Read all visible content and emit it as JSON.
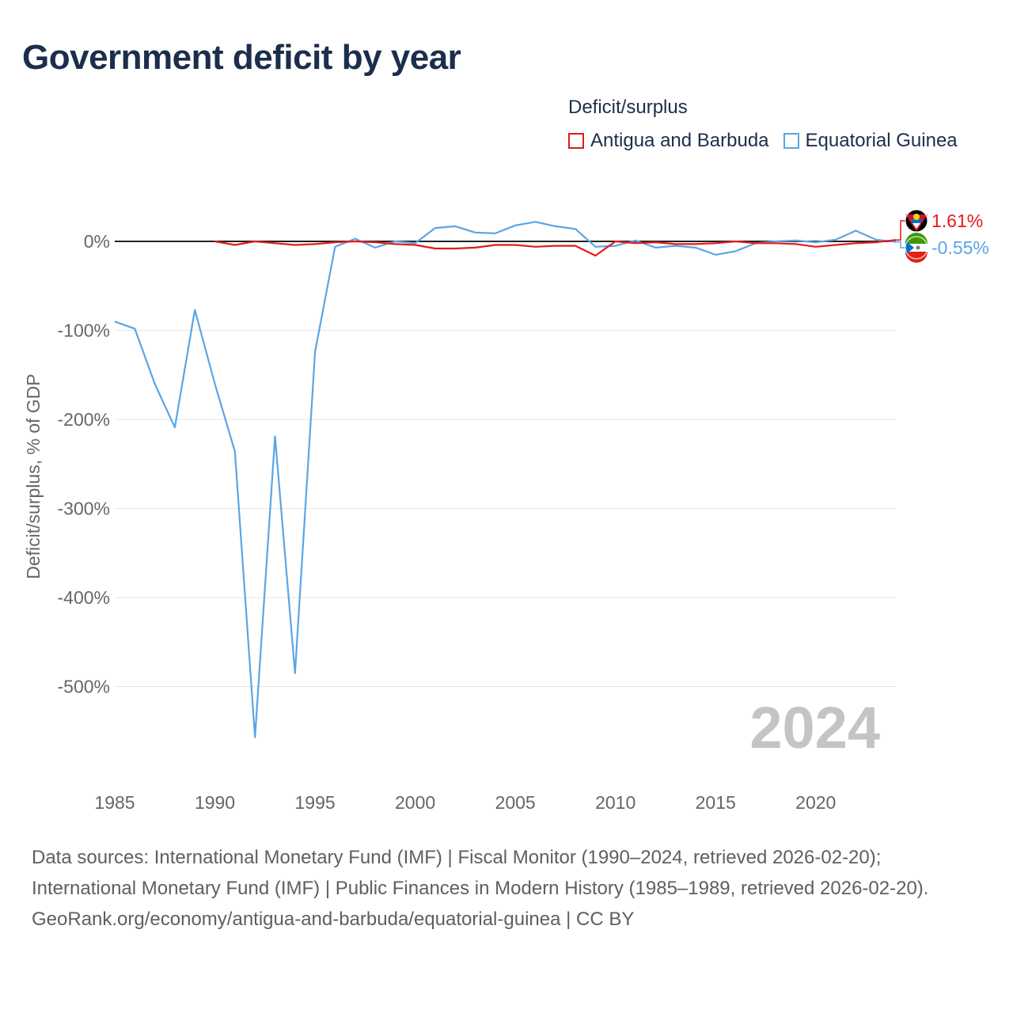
{
  "title": "Government deficit by year",
  "legend": {
    "title": "Deficit/surplus",
    "items": [
      {
        "label": "Antigua and Barbuda",
        "color": "#e31a1c"
      },
      {
        "label": "Equatorial Guinea",
        "color": "#5aa5e6"
      }
    ]
  },
  "footer": {
    "sources": "Data sources: International Monetary Fund (IMF) | Fiscal Monitor (1990–2024, retrieved 2026-02-20); International Monetary Fund (IMF) | Public Finances in Modern History (1985–1989, retrieved 2026-02-20).",
    "credit": "GeoRank.org/economy/antigua-and-barbuda/equatorial-guinea | CC BY"
  },
  "chart_data": {
    "type": "line",
    "title": "Government deficit by year",
    "xlabel": "",
    "ylabel": "Deficit/surplus, % of GDP",
    "xlim": [
      1985,
      2024
    ],
    "ylim": [
      -600,
      40
    ],
    "x_ticks": [
      1985,
      1990,
      1995,
      2000,
      2005,
      2010,
      2015,
      2020
    ],
    "y_ticks": [
      0,
      -100,
      -200,
      -300,
      -400,
      -500
    ],
    "y_tick_labels": [
      "0%",
      "-100%",
      "-200%",
      "-300%",
      "-400%",
      "-500%"
    ],
    "year_watermark": "2024",
    "series": [
      {
        "name": "Antigua and Barbuda",
        "color": "#e31a1c",
        "end_label": "1.61%",
        "x": [
          1990,
          1991,
          1992,
          1993,
          1994,
          1995,
          1996,
          1997,
          1998,
          1999,
          2000,
          2001,
          2002,
          2003,
          2004,
          2005,
          2006,
          2007,
          2008,
          2009,
          2010,
          2011,
          2012,
          2013,
          2014,
          2015,
          2016,
          2017,
          2018,
          2019,
          2020,
          2021,
          2022,
          2023,
          2024
        ],
        "values": [
          0,
          -4,
          0,
          -2,
          -4,
          -3,
          -1,
          0,
          -1,
          -3,
          -4,
          -8,
          -8,
          -7,
          -4,
          -4,
          -6,
          -5,
          -5,
          -16,
          0,
          -2,
          -1,
          -3,
          -3,
          -2,
          0,
          -2,
          -2,
          -3,
          -6,
          -4,
          -2,
          -1,
          1.61
        ]
      },
      {
        "name": "Equatorial Guinea",
        "color": "#5aa5e6",
        "end_label": "-0.55%",
        "x": [
          1985,
          1986,
          1987,
          1988,
          1989,
          1990,
          1991,
          1992,
          1993,
          1994,
          1995,
          1996,
          1997,
          1998,
          1999,
          2000,
          2001,
          2002,
          2003,
          2004,
          2005,
          2006,
          2007,
          2008,
          2009,
          2010,
          2011,
          2012,
          2013,
          2014,
          2015,
          2016,
          2017,
          2018,
          2019,
          2020,
          2021,
          2022,
          2023,
          2024
        ],
        "values": [
          -90,
          -98,
          -160,
          -209,
          -77,
          -160,
          -236,
          -557,
          -219,
          -485,
          -124,
          -6,
          3,
          -7,
          0,
          -2,
          15,
          17,
          10,
          9,
          18,
          22,
          17,
          14,
          -6,
          -5,
          1,
          -7,
          -5,
          -7,
          -15,
          -11,
          -2,
          0,
          1,
          -1,
          2,
          12,
          2,
          -0.55
        ]
      }
    ]
  }
}
